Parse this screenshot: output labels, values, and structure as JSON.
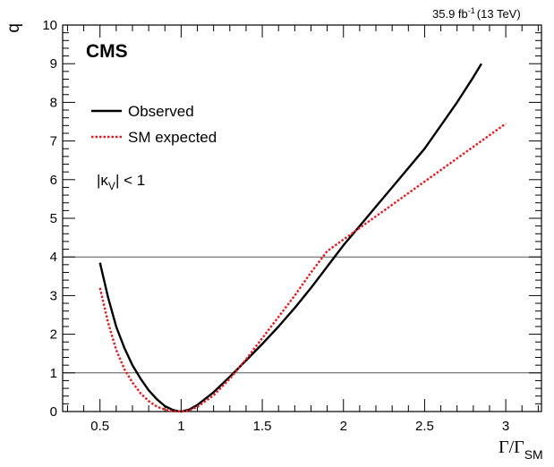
{
  "chart_data": {
    "type": "line",
    "experiment": "CMS",
    "luminosity": "35.9 fb",
    "luminosity_exponent": "-1",
    "energy": "(13 TeV)",
    "ylabel": "q",
    "xlabel_main": "Γ/Γ",
    "xlabel_sub": "SM",
    "annotation": {
      "prefix": "|κ",
      "sub": "V",
      "suffix": "| < 1"
    },
    "xlim": [
      0.27,
      3.22
    ],
    "ylim": [
      0,
      10
    ],
    "xticks": [
      0.5,
      1,
      1.5,
      2,
      2.5,
      3
    ],
    "xtick_labels": [
      "0.5",
      "1",
      "1.5",
      "2",
      "2.5",
      "3"
    ],
    "yticks": [
      0,
      1,
      2,
      3,
      4,
      5,
      6,
      7,
      8,
      9,
      10
    ],
    "ytick_labels": [
      "0",
      "1",
      "2",
      "3",
      "4",
      "5",
      "6",
      "7",
      "8",
      "9",
      "10"
    ],
    "reference_lines": [
      1,
      4
    ],
    "grid": false,
    "legend_position": "top-left",
    "series": [
      {
        "name": "Observed",
        "color": "#000000",
        "style": "solid",
        "x": [
          0.5,
          0.55,
          0.6,
          0.65,
          0.7,
          0.75,
          0.8,
          0.85,
          0.9,
          0.95,
          0.98,
          1.0,
          1.05,
          1.1,
          1.2,
          1.3,
          1.4,
          1.5,
          1.6,
          1.7,
          1.8,
          1.9,
          2.0,
          2.1,
          2.2,
          2.3,
          2.4,
          2.5,
          2.6,
          2.7,
          2.8,
          2.85
        ],
        "y": [
          3.85,
          2.95,
          2.2,
          1.65,
          1.2,
          0.85,
          0.55,
          0.32,
          0.14,
          0.04,
          0.01,
          0.0,
          0.05,
          0.17,
          0.5,
          0.9,
          1.32,
          1.75,
          2.2,
          2.68,
          3.2,
          3.75,
          4.3,
          4.8,
          5.3,
          5.8,
          6.3,
          6.8,
          7.4,
          8.0,
          8.65,
          9.0
        ]
      },
      {
        "name": "SM expected",
        "color": "#e8191e",
        "style": "dotted",
        "x": [
          0.5,
          0.55,
          0.6,
          0.65,
          0.7,
          0.75,
          0.8,
          0.85,
          0.9,
          0.95,
          1.0,
          1.05,
          1.1,
          1.2,
          1.3,
          1.4,
          1.5,
          1.6,
          1.7,
          1.8,
          1.9,
          2.0,
          2.1,
          2.2,
          2.3,
          2.4,
          2.5,
          2.6,
          2.7,
          2.8,
          2.9,
          3.0
        ],
        "y": [
          3.2,
          2.3,
          1.6,
          1.1,
          0.75,
          0.47,
          0.27,
          0.13,
          0.05,
          0.01,
          0.0,
          0.03,
          0.12,
          0.42,
          0.85,
          1.35,
          1.9,
          2.45,
          3.0,
          3.6,
          4.15,
          4.45,
          4.75,
          5.05,
          5.35,
          5.65,
          5.95,
          6.25,
          6.55,
          6.85,
          7.15,
          7.45
        ]
      }
    ]
  }
}
